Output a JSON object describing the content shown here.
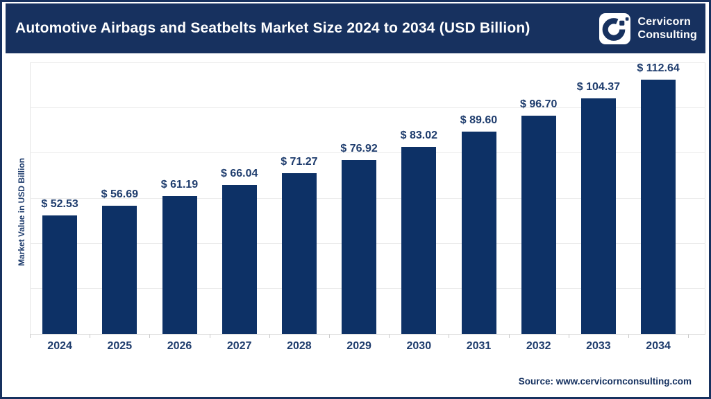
{
  "header": {
    "title": "Automotive Airbags and Seatbelts Market Size 2024 to 2034 (USD Billion)",
    "brand_line1": "Cervicorn",
    "brand_line2": "Consulting"
  },
  "chart_data": {
    "type": "bar",
    "title": "Automotive Airbags and Seatbelts Market Size 2024 to 2034 (USD Billion)",
    "categories": [
      "2024",
      "2025",
      "2026",
      "2027",
      "2028",
      "2029",
      "2030",
      "2031",
      "2032",
      "2033",
      "2034"
    ],
    "values": [
      52.53,
      56.69,
      61.19,
      66.04,
      71.27,
      76.92,
      83.02,
      89.6,
      96.7,
      104.37,
      112.64
    ],
    "value_labels": [
      "$ 52.53",
      "$ 56.69",
      "$ 61.19",
      "$ 66.04",
      "$ 71.27",
      "$ 76.92",
      "$ 83.02",
      "$ 89.60",
      "$ 96.70",
      "$ 104.37",
      "$ 112.64"
    ],
    "xlabel": "",
    "ylabel": "Market Value in USD Billion",
    "ylim": [
      0,
      120
    ],
    "gridline_values": [
      20,
      40,
      60,
      80,
      100,
      120
    ],
    "grid": true,
    "legend_position": "none",
    "bar_color": "#0d3166",
    "currency_prefix": "$ "
  },
  "footer": {
    "source": "Source: www.cervicornconsulting.com"
  },
  "colors": {
    "header_navy": "#17315f",
    "bar_navy": "#0d3166",
    "label_navy": "#1e3c6d",
    "gridline": "#ececec",
    "axis_line": "#d6d6d6",
    "background": "#ffffff"
  }
}
